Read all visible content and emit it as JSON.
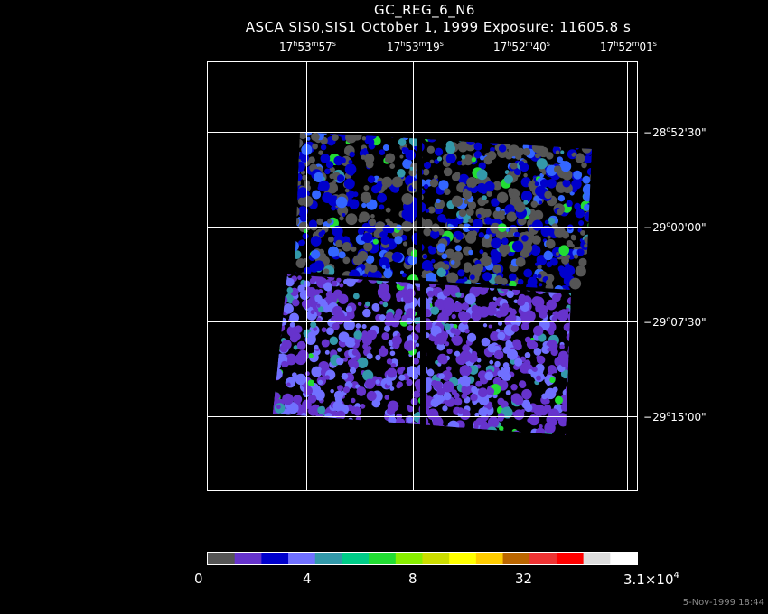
{
  "title": "GC_REG_6_N6",
  "subtitle": "ASCA SIS0,SIS1 October 1, 1999 Exposure: 11605.8 s",
  "ra_labels": [
    {
      "h": "17",
      "m": "53",
      "s": "57"
    },
    {
      "h": "17",
      "m": "53",
      "s": "19"
    },
    {
      "h": "17",
      "m": "52",
      "s": "40"
    },
    {
      "h": "17",
      "m": "52",
      "s": "01"
    }
  ],
  "dec_labels": [
    {
      "d": "28",
      "m": "52",
      "s": "30"
    },
    {
      "d": "29",
      "m": "00",
      "s": "00"
    },
    {
      "d": "29",
      "m": "07",
      "s": "30"
    },
    {
      "d": "29",
      "m": "15",
      "s": "00"
    }
  ],
  "colorbar": {
    "colors": [
      "#555555",
      "#6633cc",
      "#0000cc",
      "#7070ff",
      "#3399aa",
      "#00cc88",
      "#22dd33",
      "#88ee00",
      "#ccdd00",
      "#ffff00",
      "#ffcc00",
      "#bb6600",
      "#ee3333",
      "#ff0000",
      "#dddddd",
      "#ffffff"
    ],
    "labels": [
      "0",
      "4",
      "8",
      "32"
    ],
    "max_base": "3.1×10",
    "max_exp": "4"
  },
  "timestamp": "5-Nov-1999 18:44"
}
